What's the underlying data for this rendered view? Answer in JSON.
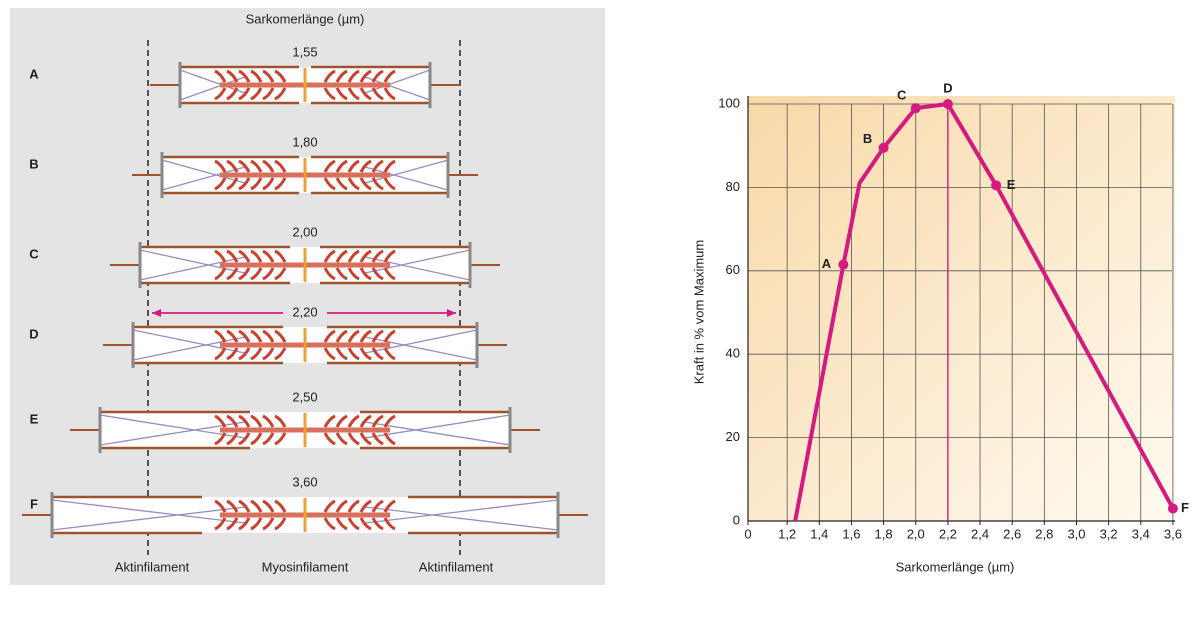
{
  "diagram": {
    "title": "Sarkomerlänge (µm)",
    "rows": [
      {
        "label": "A",
        "length": "1,55"
      },
      {
        "label": "B",
        "length": "1,80"
      },
      {
        "label": "C",
        "length": "2,00"
      },
      {
        "label": "D",
        "length": "2,20"
      },
      {
        "label": "E",
        "length": "2,50"
      },
      {
        "label": "F",
        "length": "3,60"
      }
    ],
    "bottom_labels": [
      "Aktinfilament",
      "Myosinfilament",
      "Aktinfilament"
    ]
  },
  "chart_data": {
    "type": "line",
    "x_label": "Sarkomerlänge (µm)",
    "y_label": "Kraft in % vom Maximum",
    "x": [
      1.25,
      1.55,
      1.65,
      1.8,
      2.0,
      2.2,
      2.5,
      3.6
    ],
    "series": [
      {
        "color": "#d6197f",
        "values": [
          0,
          61.5,
          81,
          89.5,
          99,
          100,
          80.5,
          3
        ],
        "point_labels": [
          null,
          "A",
          null,
          "B",
          "C",
          "D",
          "E",
          "F"
        ]
      }
    ],
    "xlim": [
      1.0,
      3.7
    ],
    "ylim": [
      0,
      100
    ],
    "xticks": [
      0,
      {
        "value": 1.2,
        "label": "1,2"
      },
      {
        "value": 1.4,
        "label": "1,4"
      },
      {
        "value": 1.6,
        "label": "1,6"
      },
      {
        "value": 1.8,
        "label": "1,8"
      },
      {
        "value": 2.0,
        "label": "2,0"
      },
      {
        "value": 2.2,
        "label": "2,2"
      },
      {
        "value": 2.4,
        "label": "2,4"
      },
      {
        "value": 2.6,
        "label": "2,6"
      },
      {
        "value": 2.8,
        "label": "2,8"
      },
      {
        "value": 3.0,
        "label": "3,0"
      },
      {
        "value": 3.2,
        "label": "3,2"
      },
      {
        "value": 3.4,
        "label": "3,4"
      },
      {
        "value": 3.6,
        "label": "3,6"
      }
    ],
    "yticks": [
      0,
      20,
      40,
      60,
      80,
      100
    ],
    "grid": true,
    "marker_x": 2.2
  }
}
